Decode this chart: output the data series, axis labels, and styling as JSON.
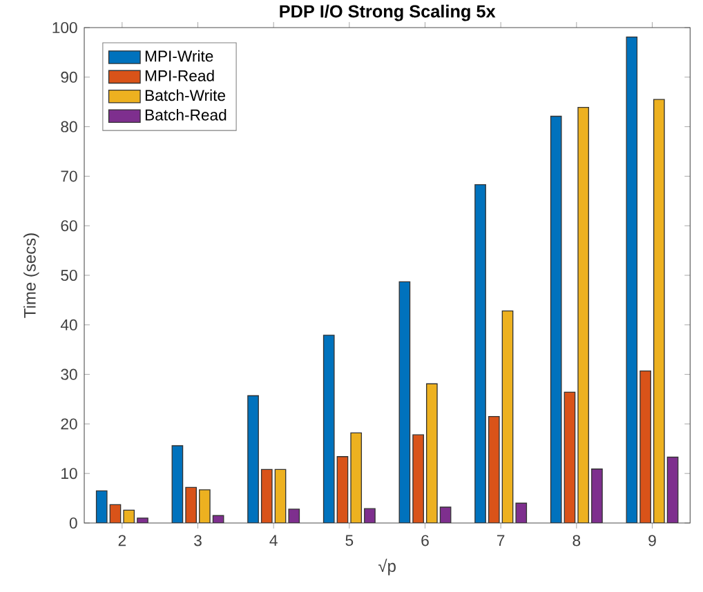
{
  "chart_data": {
    "type": "bar",
    "title": "PDP I/O Strong Scaling 5x",
    "xlabel": "√p",
    "ylabel": "Time (secs)",
    "x": [
      2,
      3,
      4,
      5,
      6,
      7,
      8,
      9
    ],
    "series": [
      {
        "name": "MPI-Write",
        "color": "#0072bd",
        "values": [
          6.5,
          15.6,
          25.7,
          37.9,
          48.7,
          68.3,
          82.1,
          98.1
        ]
      },
      {
        "name": "MPI-Read",
        "color": "#d95319",
        "values": [
          3.7,
          7.2,
          10.8,
          13.4,
          17.8,
          21.5,
          26.4,
          30.7
        ]
      },
      {
        "name": "Batch-Write",
        "color": "#edb120",
        "values": [
          2.6,
          6.7,
          10.8,
          18.2,
          28.1,
          42.8,
          83.9,
          85.5
        ]
      },
      {
        "name": "Batch-Read",
        "color": "#7e2f8e",
        "values": [
          1.0,
          1.5,
          2.8,
          2.9,
          3.2,
          4.0,
          10.9,
          13.3
        ]
      }
    ],
    "xlim": [
      1.5,
      9.5
    ],
    "ylim": [
      0,
      100
    ],
    "xticks": [
      2,
      3,
      4,
      5,
      6,
      7,
      8,
      9
    ],
    "yticks": [
      0,
      10,
      20,
      30,
      40,
      50,
      60,
      70,
      80,
      90,
      100
    ],
    "grid": false,
    "legend": "top left"
  }
}
